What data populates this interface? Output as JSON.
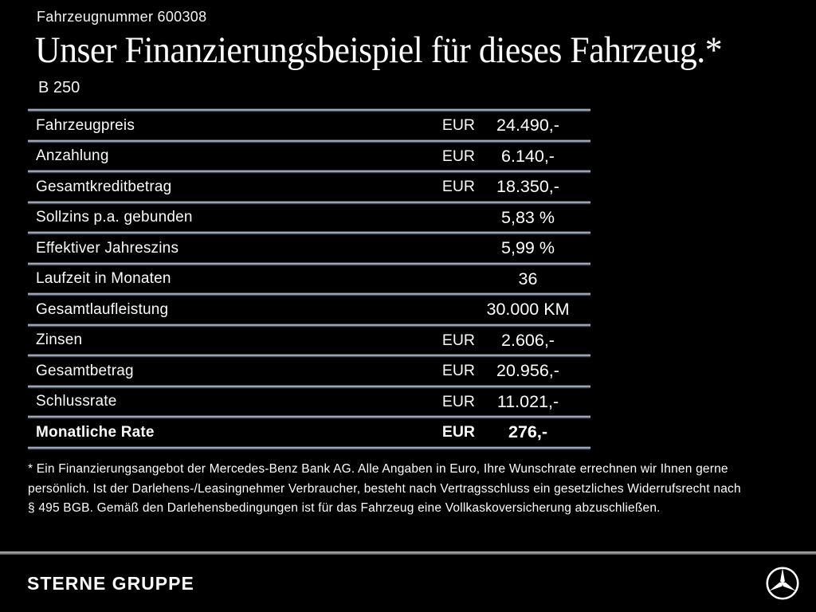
{
  "page": {
    "vehicle_number": "Fahrzeugnummer 600308",
    "title": "Unser Finanzierungsbeispiel für dieses Fahrzeug.*",
    "model": "B 250"
  },
  "table": {
    "rows": [
      {
        "label": "Fahrzeugpreis",
        "currency": "EUR",
        "value": "24.490,-",
        "bold": false
      },
      {
        "label": "Anzahlung",
        "currency": "EUR",
        "value": "6.140,-",
        "bold": false
      },
      {
        "label": "Gesamtkreditbetrag",
        "currency": "EUR",
        "value": "18.350,-",
        "bold": false
      },
      {
        "label": "Sollzins p.a. gebunden",
        "currency": "",
        "value": "5,83 %",
        "bold": false
      },
      {
        "label": "Effektiver Jahreszins",
        "currency": "",
        "value": "5,99 %",
        "bold": false
      },
      {
        "label": "Laufzeit in Monaten",
        "currency": "",
        "value": "36",
        "bold": false
      },
      {
        "label": "Gesamtlaufleistung",
        "currency": "",
        "value": "30.000 KM",
        "bold": false
      },
      {
        "label": "Zinsen",
        "currency": "EUR",
        "value": "2.606,-",
        "bold": false
      },
      {
        "label": "Gesamtbetrag",
        "currency": "EUR",
        "value": "20.956,-",
        "bold": false
      },
      {
        "label": "Schlussrate",
        "currency": "EUR",
        "value": "11.021,-",
        "bold": false
      },
      {
        "label": "Monatliche Rate",
        "currency": "EUR",
        "value": "276,-",
        "bold": true
      }
    ]
  },
  "footnote": {
    "lines": [
      "* Ein Finanzierungsangebot der Mercedes-Benz Bank AG. Alle Angaben in Euro, Ihre Wunschrate errechnen wir Ihnen gerne",
      "persönlich. Ist der Darlehens-/Leasingnehmer Verbraucher, besteht nach Vertragsschluss ein gesetzliches Widerrufsrecht nach",
      "§ 495 BGB. Gemäß den Darlehensbedingungen ist für das Fahrzeug eine Vollkaskoversicherung abzuschließen."
    ]
  },
  "footer": {
    "dealer_name": "STERNE GRUPPE",
    "logo": "mercedes-star-icon"
  },
  "colors": {
    "background": "#000000",
    "text": "#ffffff",
    "separator_light": "#b3bac3",
    "separator_shadow": "#2a3850",
    "footer_divider": "#8f8f8f"
  }
}
